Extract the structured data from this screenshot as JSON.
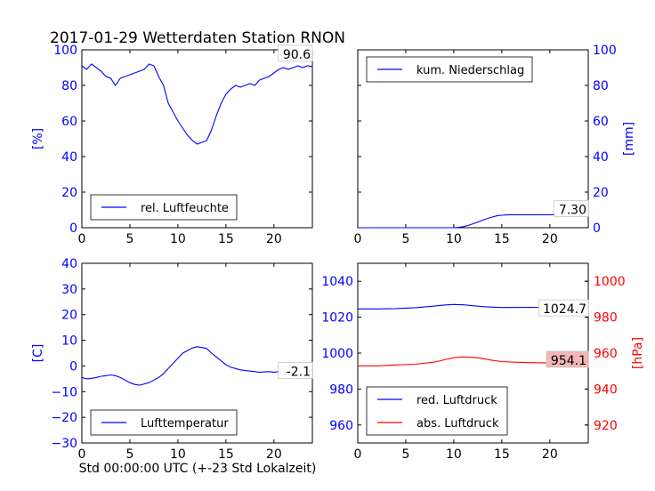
{
  "figure": {
    "title": "2017-01-29 Wetterdaten Station RNON",
    "xlabel": "Std 00:00:00 UTC (+-23 Std Lokalzeit)"
  },
  "colors": {
    "blue": "#0000ff",
    "red": "#ff0000",
    "axis": "#000000",
    "callout_fill": "#ffffff",
    "callout_red_fill": "#f4b6b6"
  },
  "chart_data": [
    {
      "id": "humidity",
      "type": "line",
      "ylabel": "[%]",
      "xlim": [
        0,
        24
      ],
      "ylim": [
        0,
        100
      ],
      "xticks": [
        "0",
        "5",
        "10",
        "15",
        "20"
      ],
      "yticks": [
        "0",
        "20",
        "40",
        "60",
        "80",
        "100"
      ],
      "legend": "lower-center",
      "callout": "90.6",
      "series": [
        {
          "name": "rel. Luftfeuchte",
          "color": "blue",
          "x": [
            0,
            0.5,
            1,
            1.5,
            2,
            2.5,
            3,
            3.5,
            4,
            4.5,
            5,
            5.5,
            6,
            6.5,
            7,
            7.5,
            8,
            8.5,
            9,
            9.5,
            10,
            10.5,
            11,
            11.5,
            12,
            12.5,
            13,
            13.5,
            14,
            14.5,
            15,
            15.5,
            16,
            16.5,
            17,
            17.5,
            18,
            18.5,
            19,
            19.5,
            20,
            20.5,
            21,
            21.5,
            22,
            22.5,
            23,
            23.5,
            24
          ],
          "y": [
            91,
            89,
            92,
            90,
            88,
            85,
            84,
            80,
            84,
            85,
            86,
            87,
            88,
            89,
            92,
            91,
            85,
            80,
            70,
            65,
            60,
            56,
            52,
            49,
            47,
            48,
            49,
            55,
            63,
            70,
            75,
            78,
            80,
            79,
            80,
            81,
            80,
            83,
            84,
            85,
            87,
            89,
            90,
            89,
            90,
            91,
            90,
            91,
            90.6
          ]
        }
      ]
    },
    {
      "id": "precip",
      "type": "line",
      "ylabel": "[mm]",
      "yaxis": "right",
      "xlim": [
        0,
        24
      ],
      "ylim": [
        0,
        100
      ],
      "xticks": [
        "0",
        "5",
        "10",
        "15",
        "20"
      ],
      "yticks": [
        "0",
        "20",
        "40",
        "60",
        "80",
        "100"
      ],
      "legend": "top-left",
      "callout": "7.30",
      "series": [
        {
          "name": "kum. Niederschlag",
          "color": "blue",
          "x": [
            0,
            10,
            10.5,
            11,
            11.5,
            12,
            12.5,
            13,
            13.5,
            14,
            14.5,
            15,
            15.5,
            16,
            17,
            18,
            20,
            22,
            24
          ],
          "y": [
            0,
            0,
            0.2,
            0.6,
            1.3,
            2.2,
            3.2,
            4.2,
            5.2,
            6.0,
            6.7,
            7.0,
            7.2,
            7.3,
            7.3,
            7.3,
            7.3,
            7.3,
            7.3
          ]
        }
      ]
    },
    {
      "id": "temperature",
      "type": "line",
      "ylabel": "[C]",
      "xlim": [
        0,
        24
      ],
      "ylim": [
        -30,
        40
      ],
      "xticks": [
        "0",
        "5",
        "10",
        "15",
        "20"
      ],
      "yticks": [
        "−30",
        "−20",
        "−10",
        "0",
        "10",
        "20",
        "30",
        "40"
      ],
      "legend": "lower-center",
      "callout": "-2.1",
      "series": [
        {
          "name": "Lufttemperatur",
          "color": "blue",
          "x": [
            0,
            0.5,
            1,
            1.5,
            2,
            2.5,
            3,
            3.5,
            4,
            4.5,
            5,
            5.5,
            6,
            6.5,
            7,
            7.5,
            8,
            8.5,
            9,
            9.5,
            10,
            10.5,
            11,
            11.5,
            12,
            12.5,
            13,
            13.5,
            14,
            14.5,
            15,
            15.5,
            16,
            16.5,
            17,
            17.5,
            18,
            18.5,
            19,
            19.5,
            20,
            20.5,
            21,
            21.5,
            22,
            22.5,
            23,
            23.5,
            24
          ],
          "y": [
            -4.5,
            -5,
            -4.8,
            -4.5,
            -4,
            -3.8,
            -3.5,
            -3.8,
            -4.5,
            -5.5,
            -6.5,
            -7.2,
            -7.5,
            -7,
            -6.5,
            -5.5,
            -4.5,
            -3,
            -1,
            1,
            3,
            5,
            6,
            7,
            7.5,
            7.2,
            6.8,
            5,
            3.5,
            2,
            0.5,
            -0.5,
            -1,
            -1.5,
            -1.8,
            -2,
            -2.2,
            -2.5,
            -2.3,
            -2.2,
            -2.4,
            -2.2,
            -2,
            -2.1,
            -2.2,
            -2,
            -2.1,
            -2.1,
            -2.1
          ]
        }
      ]
    },
    {
      "id": "pressure",
      "type": "line",
      "xlim": [
        0,
        24
      ],
      "ylim": [
        950,
        1050
      ],
      "ylim_right": [
        910,
        1010
      ],
      "ylabel_right": "[hPa]",
      "xticks": [
        "0",
        "5",
        "10",
        "15",
        "20"
      ],
      "yticks": [
        "960",
        "980",
        "1000",
        "1020",
        "1040"
      ],
      "yticks_right": [
        "920",
        "940",
        "960",
        "980",
        "1000"
      ],
      "legend": "lower-left",
      "callout_blue": "1024.7",
      "callout_red": "954.1",
      "series": [
        {
          "name": "red. Luftdruck",
          "color": "blue",
          "axis": "left",
          "x": [
            0,
            2,
            4,
            6,
            8,
            9,
            10,
            11,
            12,
            13,
            14,
            15,
            16,
            18,
            20,
            22,
            24
          ],
          "y": [
            1024.6,
            1024.6,
            1024.8,
            1025.3,
            1026.2,
            1026.8,
            1027.1,
            1026.9,
            1026.4,
            1025.9,
            1025.6,
            1025.4,
            1025.4,
            1025.5,
            1025.3,
            1025.0,
            1024.7
          ]
        },
        {
          "name": "abs. Luftdruck",
          "color": "red",
          "axis": "right",
          "x": [
            0,
            2,
            4,
            6,
            8,
            9,
            10,
            11,
            12,
            13,
            14,
            15,
            16,
            18,
            20,
            22,
            24
          ],
          "y": [
            952.9,
            952.9,
            953.4,
            953.8,
            955.0,
            956.3,
            957.5,
            957.9,
            957.6,
            957.0,
            956.0,
            955.3,
            955.0,
            954.7,
            954.5,
            954.3,
            954.1
          ]
        }
      ]
    }
  ]
}
